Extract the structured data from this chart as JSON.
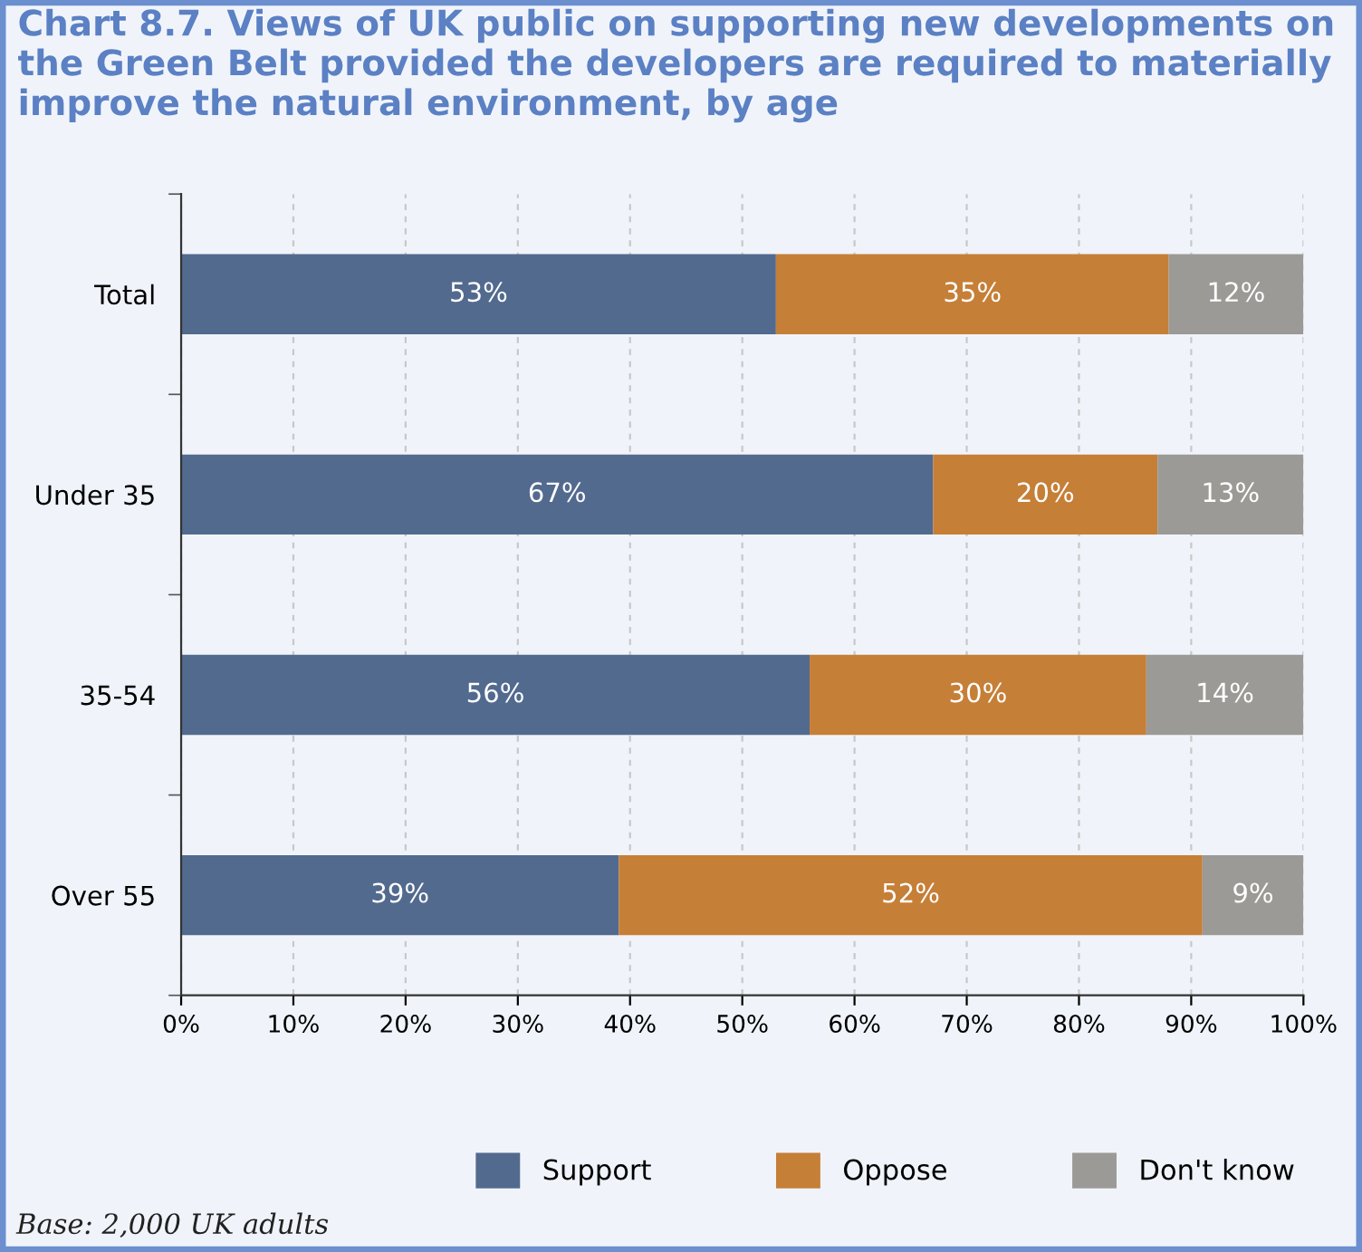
{
  "chart_data": {
    "type": "bar",
    "orientation": "horizontal",
    "stacked": true,
    "title": "Chart 8.7. Views of UK public on supporting new developments on the Green Belt provided the developers are required to materially improve the natural environment, by age",
    "categories": [
      "Total",
      "Under 35",
      "35-54",
      "Over 55"
    ],
    "series": [
      {
        "name": "Support",
        "color": "#536a8f",
        "values": [
          53,
          67,
          56,
          39
        ],
        "value_labels": [
          "53%",
          "67%",
          "56%",
          "39%"
        ]
      },
      {
        "name": "Oppose",
        "color": "#c67f37",
        "values": [
          35,
          20,
          30,
          52
        ],
        "value_labels": [
          "35%",
          "20%",
          "30%",
          "52%"
        ]
      },
      {
        "name": "Don't know",
        "color": "#9b9a96",
        "values": [
          12,
          13,
          14,
          9
        ],
        "value_labels": [
          "12%",
          "13%",
          "14%",
          "9%"
        ]
      }
    ],
    "xlim": [
      0,
      100
    ],
    "xticks": [
      {
        "value": 0,
        "label": "0%"
      },
      {
        "value": 10,
        "label": "10%"
      },
      {
        "value": 20,
        "label": "20%"
      },
      {
        "value": 30,
        "label": "30%"
      },
      {
        "value": 40,
        "label": "40%"
      },
      {
        "value": 50,
        "label": "50%"
      },
      {
        "value": 60,
        "label": "60%"
      },
      {
        "value": 70,
        "label": "70%"
      },
      {
        "value": 80,
        "label": "80%"
      },
      {
        "value": 90,
        "label": "90%"
      },
      {
        "value": 100,
        "label": "100%"
      }
    ],
    "grid": "x",
    "legend": "bottom",
    "annotations": [
      "Base: 2,000 UK adults"
    ]
  }
}
